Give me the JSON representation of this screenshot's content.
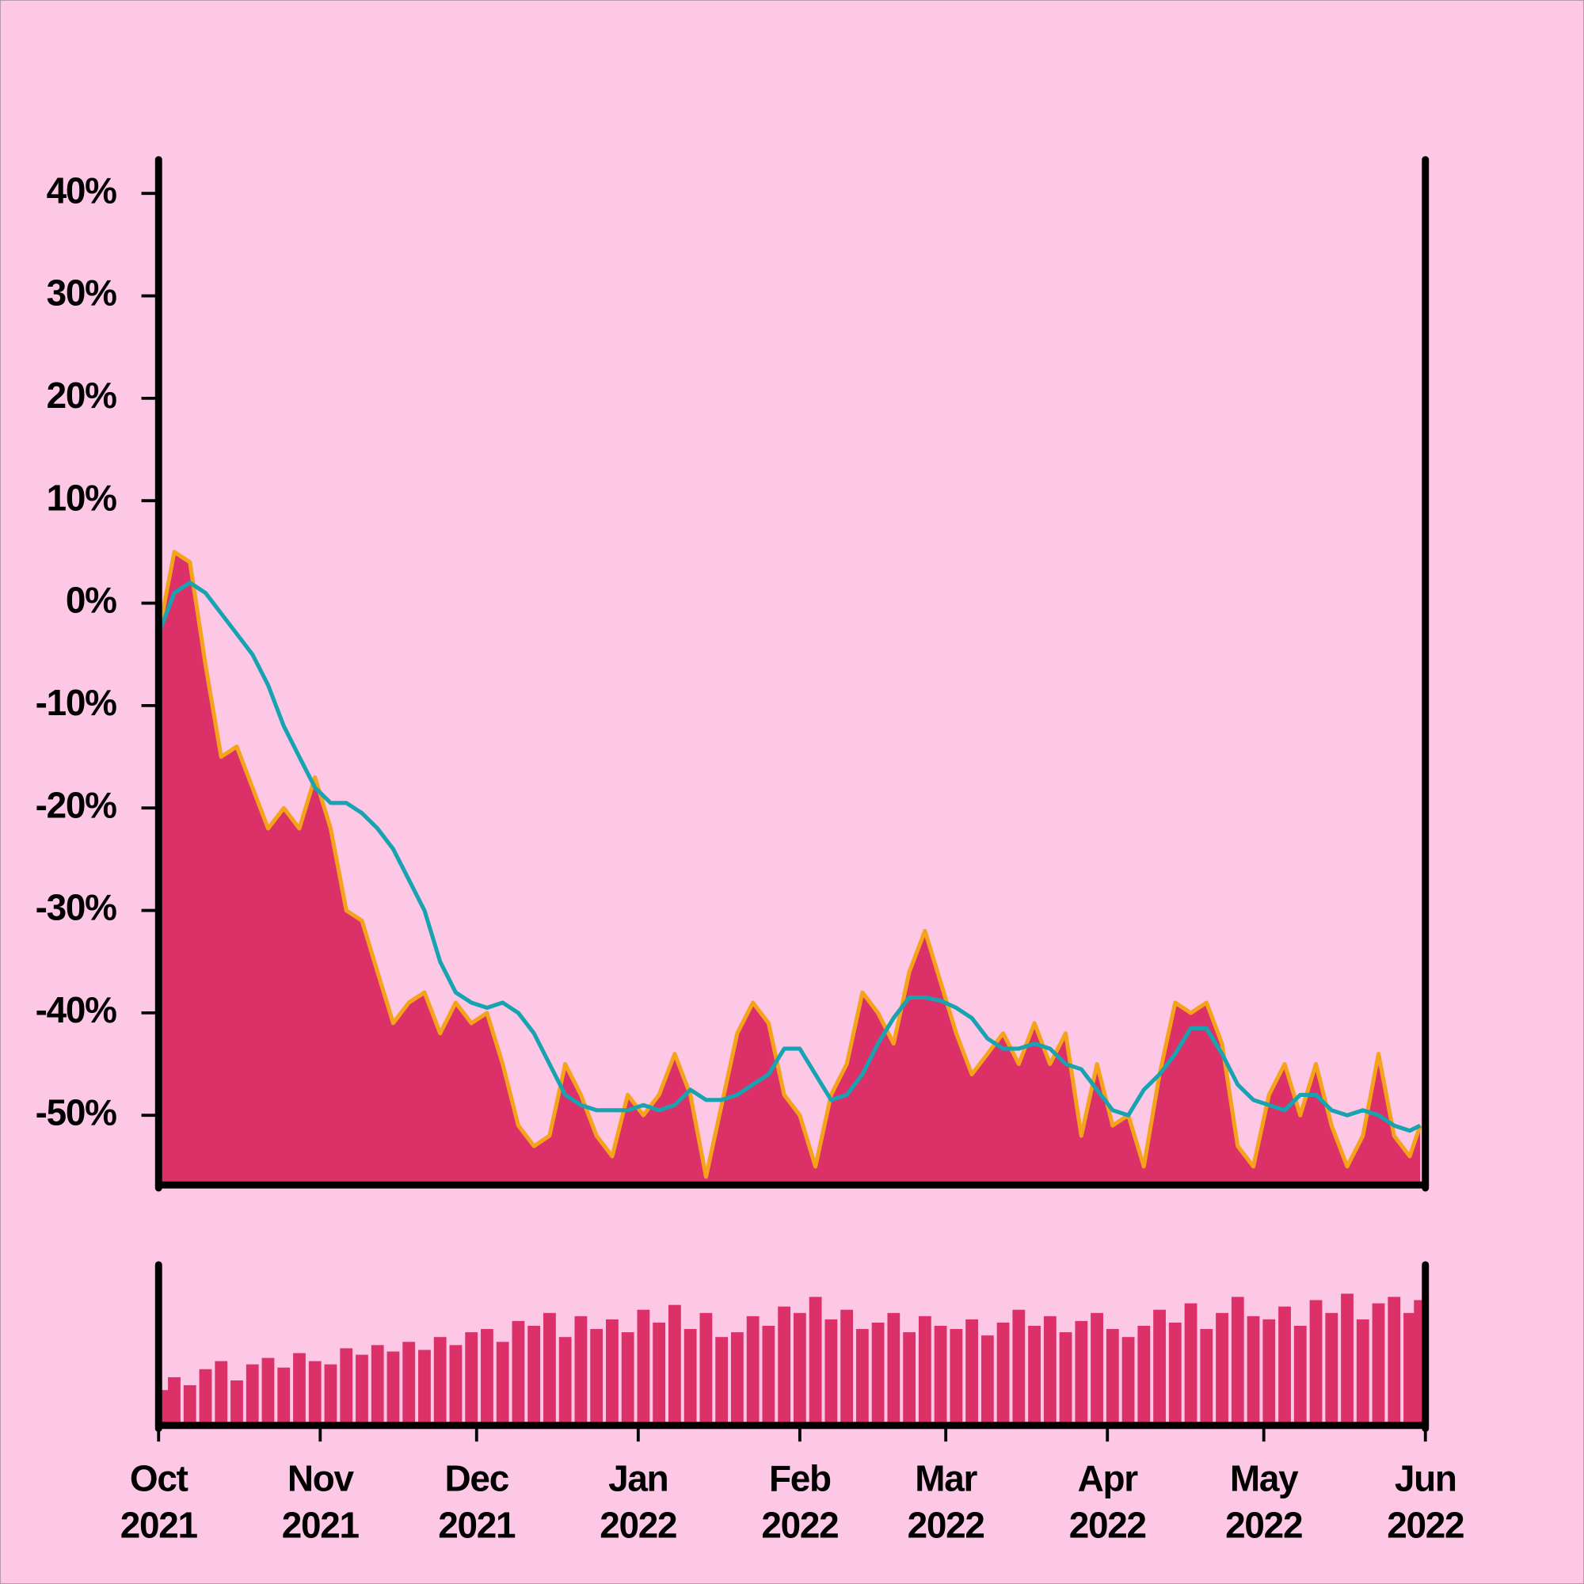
{
  "chart_data": [
    {
      "type": "area",
      "x": [
        "2021-10-01",
        "2021-10-04",
        "2021-10-07",
        "2021-10-10",
        "2021-10-13",
        "2021-10-16",
        "2021-10-19",
        "2021-10-22",
        "2021-10-25",
        "2021-10-28",
        "2021-10-31",
        "2021-11-03",
        "2021-11-06",
        "2021-11-09",
        "2021-11-12",
        "2021-11-15",
        "2021-11-18",
        "2021-11-21",
        "2021-11-24",
        "2021-11-27",
        "2021-11-30",
        "2021-12-03",
        "2021-12-06",
        "2021-12-09",
        "2021-12-12",
        "2021-12-15",
        "2021-12-18",
        "2021-12-21",
        "2021-12-24",
        "2021-12-27",
        "2021-12-30",
        "2022-01-02",
        "2022-01-05",
        "2022-01-08",
        "2022-01-11",
        "2022-01-14",
        "2022-01-17",
        "2022-01-20",
        "2022-01-23",
        "2022-01-26",
        "2022-01-29",
        "2022-02-01",
        "2022-02-04",
        "2022-02-07",
        "2022-02-10",
        "2022-02-13",
        "2022-02-16",
        "2022-02-19",
        "2022-02-22",
        "2022-02-25",
        "2022-02-28",
        "2022-03-03",
        "2022-03-06",
        "2022-03-09",
        "2022-03-12",
        "2022-03-15",
        "2022-03-18",
        "2022-03-21",
        "2022-03-24",
        "2022-03-27",
        "2022-03-30",
        "2022-04-02",
        "2022-04-05",
        "2022-04-08",
        "2022-04-11",
        "2022-04-14",
        "2022-04-17",
        "2022-04-20",
        "2022-04-23",
        "2022-04-26",
        "2022-04-29",
        "2022-05-02",
        "2022-05-05",
        "2022-05-08",
        "2022-05-11",
        "2022-05-14",
        "2022-05-17",
        "2022-05-20",
        "2022-05-23",
        "2022-05-26",
        "2022-05-29",
        "2022-05-31"
      ],
      "series": [
        {
          "kind": "area",
          "color": "#dc3069",
          "edge_color": "#f5a31a",
          "values": [
            -3,
            5,
            4,
            -6,
            -15,
            -14,
            -18,
            -22,
            -20,
            -22,
            -17,
            -22,
            -30,
            -31,
            -36,
            -41,
            -39,
            -38,
            -42,
            -39,
            -41,
            -40,
            -45,
            -51,
            -53,
            -52,
            -45,
            -48,
            -52,
            -54,
            -48,
            -50,
            -48,
            -44,
            -48,
            -56,
            -49,
            -42,
            -39,
            -41,
            -48,
            -50,
            -55,
            -48,
            -45,
            -38,
            -40,
            -43,
            -36,
            -32,
            -37,
            -42,
            -46,
            -44,
            -42,
            -45,
            -41,
            -45,
            -42,
            -52,
            -45,
            -51,
            -50,
            -55,
            -46,
            -39,
            -40,
            -39,
            -43,
            -53,
            -55,
            -48,
            -45,
            -50,
            -45,
            -51,
            -55,
            -52,
            -44,
            -52,
            -54,
            -51
          ]
        },
        {
          "kind": "line",
          "color": "#17a3b0",
          "values": [
            -3,
            1,
            2,
            1,
            -1,
            -3,
            -5,
            -8,
            -12,
            -15,
            -18,
            -19.5,
            -19.5,
            -20.5,
            -22,
            -24,
            -27,
            -30,
            -35,
            -38,
            -39,
            -39.5,
            -39,
            -40,
            -42,
            -45,
            -48,
            -49,
            -49.5,
            -49.5,
            -49.5,
            -49,
            -49.5,
            -49,
            -47.5,
            -48.5,
            -48.5,
            -48,
            -47,
            -46,
            -43.5,
            -43.5,
            -46,
            -48.5,
            -48,
            -46,
            -43,
            -40.5,
            -38.5,
            -38.5,
            -38.8,
            -39.5,
            -40.5,
            -42.5,
            -43.5,
            -43.5,
            -43,
            -43.5,
            -45,
            -45.5,
            -47.5,
            -49.5,
            -50,
            -47.5,
            -46,
            -44,
            -41.5,
            -41.5,
            -44,
            -47,
            -48.5,
            -49,
            -49.5,
            -48,
            -48,
            -49.5,
            -50,
            -49.5,
            -50,
            -51,
            -51.5,
            -51
          ]
        }
      ],
      "xlim": [
        "2021-10-01",
        "2022-06-01"
      ],
      "ylim": [
        -56.8,
        43.3
      ],
      "yticks": [
        {
          "value": 40,
          "label": "40%"
        },
        {
          "value": 30,
          "label": "30%"
        },
        {
          "value": 20,
          "label": "20%"
        },
        {
          "value": 10,
          "label": "10%"
        },
        {
          "value": 0,
          "label": "0%"
        },
        {
          "value": -10,
          "label": "-10%"
        },
        {
          "value": -20,
          "label": "-20%"
        },
        {
          "value": -30,
          "label": "-30%"
        },
        {
          "value": -40,
          "label": "-40%"
        },
        {
          "value": -50,
          "label": "-50%"
        }
      ]
    },
    {
      "type": "bar",
      "x": [
        "2021-10-01",
        "2021-10-04",
        "2021-10-07",
        "2021-10-10",
        "2021-10-13",
        "2021-10-16",
        "2021-10-19",
        "2021-10-22",
        "2021-10-25",
        "2021-10-28",
        "2021-10-31",
        "2021-11-03",
        "2021-11-06",
        "2021-11-09",
        "2021-11-12",
        "2021-11-15",
        "2021-11-18",
        "2021-11-21",
        "2021-11-24",
        "2021-11-27",
        "2021-11-30",
        "2021-12-03",
        "2021-12-06",
        "2021-12-09",
        "2021-12-12",
        "2021-12-15",
        "2021-12-18",
        "2021-12-21",
        "2021-12-24",
        "2021-12-27",
        "2021-12-30",
        "2022-01-02",
        "2022-01-05",
        "2022-01-08",
        "2022-01-11",
        "2022-01-14",
        "2022-01-17",
        "2022-01-20",
        "2022-01-23",
        "2022-01-26",
        "2022-01-29",
        "2022-02-01",
        "2022-02-04",
        "2022-02-07",
        "2022-02-10",
        "2022-02-13",
        "2022-02-16",
        "2022-02-19",
        "2022-02-22",
        "2022-02-25",
        "2022-02-28",
        "2022-03-03",
        "2022-03-06",
        "2022-03-09",
        "2022-03-12",
        "2022-03-15",
        "2022-03-18",
        "2022-03-21",
        "2022-03-24",
        "2022-03-27",
        "2022-03-30",
        "2022-04-02",
        "2022-04-05",
        "2022-04-08",
        "2022-04-11",
        "2022-04-14",
        "2022-04-17",
        "2022-04-20",
        "2022-04-23",
        "2022-04-26",
        "2022-04-29",
        "2022-05-02",
        "2022-05-05",
        "2022-05-08",
        "2022-05-11",
        "2022-05-14",
        "2022-05-17",
        "2022-05-20",
        "2022-05-23",
        "2022-05-26",
        "2022-05-29",
        "2022-05-31"
      ],
      "values": [
        22,
        30,
        25,
        35,
        40,
        28,
        38,
        42,
        36,
        45,
        40,
        38,
        48,
        44,
        50,
        46,
        52,
        47,
        55,
        50,
        58,
        60,
        52,
        65,
        62,
        70,
        55,
        68,
        60,
        66,
        58,
        72,
        64,
        75,
        60,
        70,
        55,
        58,
        68,
        62,
        74,
        70,
        80,
        66,
        72,
        60,
        64,
        70,
        58,
        68,
        62,
        60,
        66,
        56,
        64,
        72,
        62,
        68,
        58,
        65,
        70,
        60,
        55,
        62,
        72,
        64,
        76,
        60,
        70,
        80,
        68,
        66,
        74,
        62,
        78,
        70,
        82,
        66,
        76,
        80,
        70,
        78
      ],
      "color": "#dc3069",
      "xlim": [
        "2021-10-01",
        "2022-06-01"
      ],
      "ylim": [
        0,
        100
      ],
      "xticks": [
        {
          "value": "2021-10-01",
          "label": "Oct 2021"
        },
        {
          "value": "2021-11-01",
          "label": "Nov 2021"
        },
        {
          "value": "2021-12-01",
          "label": "Dec 2021"
        },
        {
          "value": "2022-01-01",
          "label": "Jan 2022"
        },
        {
          "value": "2022-02-01",
          "label": "Feb 2022"
        },
        {
          "value": "2022-03-01",
          "label": "Mar 2022"
        },
        {
          "value": "2022-04-01",
          "label": "Apr 2022"
        },
        {
          "value": "2022-05-01",
          "label": "May 2022"
        },
        {
          "value": "2022-06-01",
          "label": "Jun 2022"
        }
      ]
    }
  ]
}
